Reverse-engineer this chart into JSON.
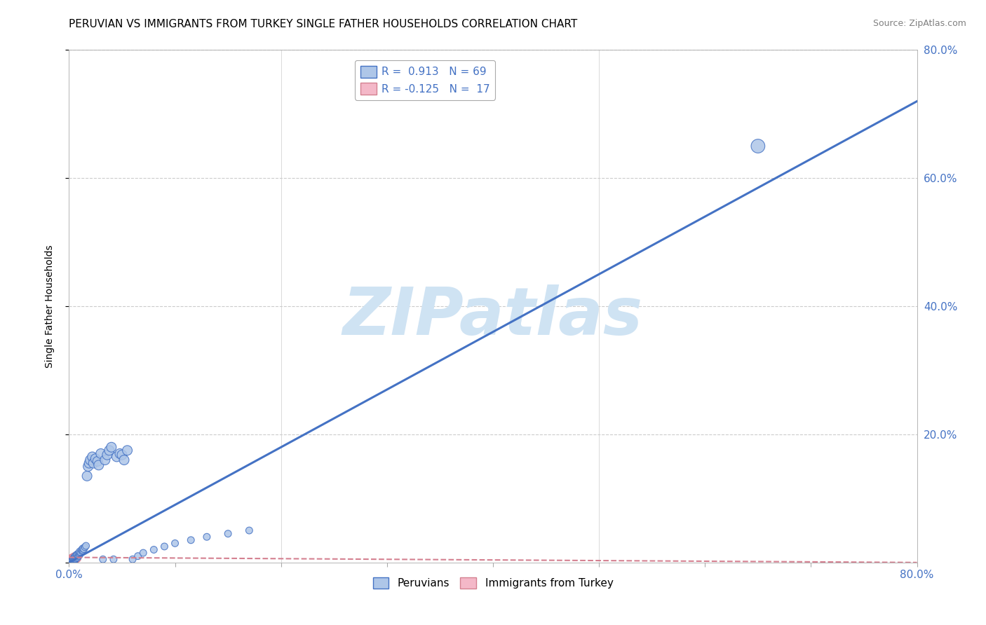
{
  "title": "PERUVIAN VS IMMIGRANTS FROM TURKEY SINGLE FATHER HOUSEHOLDS CORRELATION CHART",
  "source": "Source: ZipAtlas.com",
  "ylabel": "Single Father Households",
  "xlim": [
    0.0,
    0.8
  ],
  "ylim": [
    0.0,
    0.8
  ],
  "xticks": [
    0.0,
    0.1,
    0.2,
    0.3,
    0.4,
    0.5,
    0.6,
    0.7,
    0.8
  ],
  "xticklabels": [
    "0.0%",
    "",
    "",
    "",
    "",
    "",
    "",
    "",
    "80.0%"
  ],
  "yticks": [
    0.0,
    0.2,
    0.4,
    0.6,
    0.8
  ],
  "yticklabels_right": [
    "",
    "20.0%",
    "40.0%",
    "60.0%",
    "80.0%"
  ],
  "blue_R": 0.913,
  "blue_N": 69,
  "pink_R": -0.125,
  "pink_N": 17,
  "blue_color": "#aec6e8",
  "blue_edge_color": "#4472c4",
  "pink_color": "#f4b8c8",
  "pink_edge_color": "#d48090",
  "blue_scatter_x": [
    0.002,
    0.003,
    0.003,
    0.004,
    0.004,
    0.004,
    0.005,
    0.005,
    0.005,
    0.005,
    0.005,
    0.005,
    0.006,
    0.006,
    0.006,
    0.006,
    0.006,
    0.007,
    0.007,
    0.007,
    0.007,
    0.008,
    0.008,
    0.008,
    0.009,
    0.009,
    0.01,
    0.01,
    0.01,
    0.011,
    0.012,
    0.012,
    0.013,
    0.013,
    0.014,
    0.015,
    0.016,
    0.017,
    0.018,
    0.019,
    0.02,
    0.022,
    0.023,
    0.025,
    0.027,
    0.028,
    0.03,
    0.032,
    0.034,
    0.036,
    0.038,
    0.04,
    0.042,
    0.045,
    0.048,
    0.05,
    0.052,
    0.055,
    0.06,
    0.065,
    0.07,
    0.08,
    0.09,
    0.1,
    0.115,
    0.13,
    0.15,
    0.17,
    0.65
  ],
  "blue_scatter_y": [
    0.002,
    0.004,
    0.003,
    0.005,
    0.004,
    0.006,
    0.004,
    0.006,
    0.003,
    0.007,
    0.005,
    0.008,
    0.005,
    0.007,
    0.006,
    0.009,
    0.01,
    0.007,
    0.009,
    0.011,
    0.012,
    0.008,
    0.011,
    0.013,
    0.01,
    0.014,
    0.012,
    0.015,
    0.017,
    0.016,
    0.018,
    0.02,
    0.019,
    0.022,
    0.021,
    0.024,
    0.026,
    0.135,
    0.15,
    0.155,
    0.16,
    0.165,
    0.155,
    0.162,
    0.158,
    0.152,
    0.17,
    0.005,
    0.16,
    0.168,
    0.175,
    0.18,
    0.005,
    0.165,
    0.17,
    0.168,
    0.16,
    0.175,
    0.005,
    0.01,
    0.015,
    0.02,
    0.025,
    0.03,
    0.035,
    0.04,
    0.045,
    0.05,
    0.65
  ],
  "blue_scatter_sizes": [
    50,
    50,
    50,
    50,
    50,
    50,
    50,
    50,
    50,
    50,
    50,
    50,
    50,
    50,
    50,
    50,
    50,
    50,
    50,
    50,
    50,
    50,
    50,
    50,
    50,
    50,
    50,
    50,
    50,
    50,
    50,
    50,
    50,
    50,
    50,
    50,
    50,
    100,
    100,
    100,
    100,
    100,
    100,
    100,
    100,
    100,
    100,
    50,
    100,
    100,
    100,
    100,
    50,
    100,
    100,
    100,
    100,
    100,
    50,
    50,
    50,
    50,
    50,
    50,
    50,
    50,
    50,
    50,
    200
  ],
  "pink_scatter_x": [
    0.001,
    0.002,
    0.002,
    0.003,
    0.003,
    0.004,
    0.004,
    0.004,
    0.005,
    0.005,
    0.005,
    0.006,
    0.006,
    0.006,
    0.007,
    0.007,
    0.008
  ],
  "pink_scatter_y": [
    0.005,
    0.004,
    0.007,
    0.005,
    0.008,
    0.004,
    0.006,
    0.009,
    0.005,
    0.007,
    0.01,
    0.004,
    0.007,
    0.009,
    0.005,
    0.008,
    0.006
  ],
  "pink_scatter_sizes": [
    50,
    50,
    50,
    50,
    50,
    50,
    50,
    50,
    50,
    50,
    50,
    50,
    50,
    50,
    50,
    50,
    50
  ],
  "blue_line_x": [
    0.0,
    0.8
  ],
  "blue_line_y": [
    0.0,
    0.72
  ],
  "pink_line_x": [
    0.0,
    0.8
  ],
  "pink_line_y": [
    0.008,
    0.0
  ],
  "watermark": "ZIPatlas",
  "watermark_color": "#cfe3f3",
  "background_color": "#ffffff",
  "grid_color": "#cccccc",
  "legend_labels": [
    "Peruvians",
    "Immigrants from Turkey"
  ],
  "title_fontsize": 11,
  "axis_label_fontsize": 10,
  "tick_fontsize": 11,
  "legend_fontsize": 11,
  "source_fontsize": 9
}
